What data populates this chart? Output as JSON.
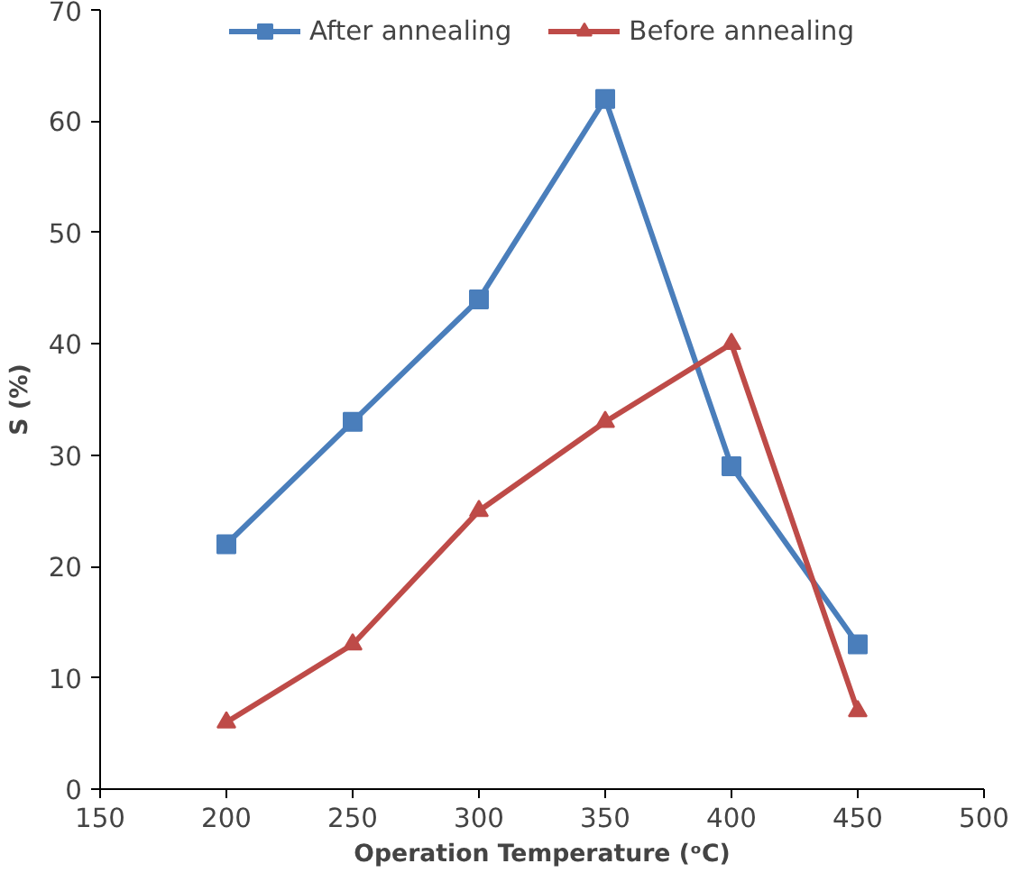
{
  "chart_data": {
    "type": "line",
    "xlabel": "Operation Temperature (ᵒC)",
    "ylabel": "S (%)",
    "x": [
      200,
      250,
      300,
      350,
      400,
      450
    ],
    "series": [
      {
        "name": "After annealing",
        "color": "#4a7ebb",
        "marker": "square",
        "values": [
          22,
          33,
          44,
          62,
          29,
          13
        ]
      },
      {
        "name": "Before annealing",
        "color": "#be4b48",
        "marker": "triangle",
        "values": [
          6,
          13,
          25,
          33,
          40,
          7
        ]
      }
    ],
    "xlim": [
      150,
      500
    ],
    "xticks": [
      150,
      200,
      250,
      300,
      350,
      400,
      450,
      500
    ],
    "ylim": [
      0,
      70
    ],
    "yticks": [
      0,
      10,
      20,
      30,
      40,
      50,
      60,
      70
    ],
    "grid": false,
    "legend": "top",
    "line_style": "solid"
  }
}
